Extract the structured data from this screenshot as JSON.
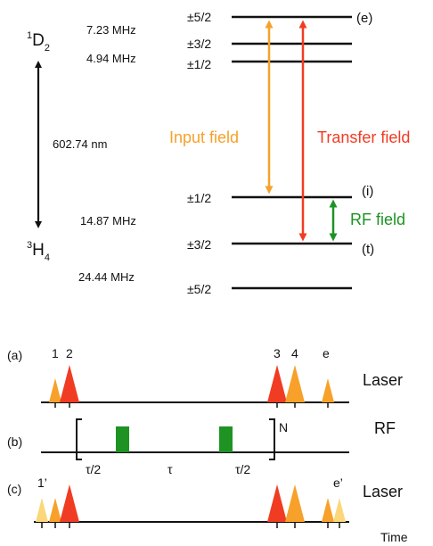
{
  "levels": {
    "upper_state": {
      "main": "D",
      "sup": "1",
      "sub": "2"
    },
    "lower_state": {
      "main": "H",
      "sup": "3",
      "sub": "4"
    },
    "wavelength": "602.74 nm",
    "upper_splittings": [
      "7.23 MHz",
      "4.94 MHz"
    ],
    "lower_splittings": [
      "14.87 MHz",
      "24.44 MHz"
    ],
    "upper_sublevels": [
      "±5/2",
      "±3/2",
      "±1/2"
    ],
    "lower_sublevels": [
      "±1/2",
      "±3/2",
      "±5/2"
    ],
    "state_labels": {
      "e": "(e)",
      "i": "(i)",
      "t": "(t)"
    },
    "fields": {
      "input": {
        "label": "Input field",
        "color": "#F7A12A"
      },
      "transfer": {
        "label": "Transfer field",
        "color": "#F03C23"
      },
      "rf": {
        "label": "RF field",
        "color": "#1E9324"
      }
    }
  },
  "sequence": {
    "rows": [
      {
        "tag": "(a)",
        "label": "Laser"
      },
      {
        "tag": "(b)",
        "label": "RF"
      },
      {
        "tag": "(c)",
        "label": "Laser"
      }
    ],
    "pulse_numbers": [
      "1",
      "2",
      "3",
      "4",
      "e"
    ],
    "row_c_labels": [
      "1’",
      "e’"
    ],
    "repeat_label": "N",
    "timing": [
      "τ/2",
      "τ",
      "τ/2"
    ],
    "time_axis": "Time",
    "colors": {
      "light": "#FBD77A",
      "orange": "#F7A12A",
      "red": "#F03C23",
      "green": "#1E9324"
    }
  }
}
